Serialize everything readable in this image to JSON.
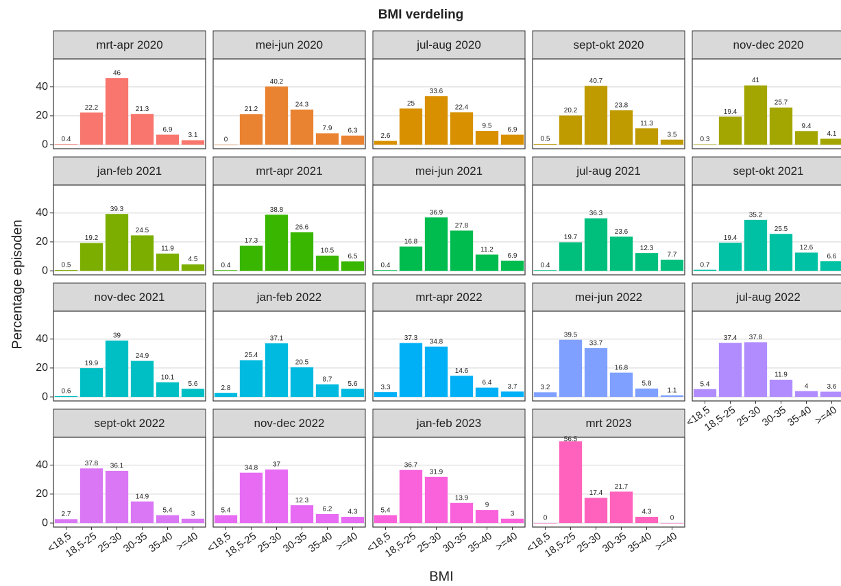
{
  "chart_data": {
    "type": "bar",
    "title": "BMI verdeling",
    "xlabel": "BMI",
    "ylabel": "Percentage episoden",
    "categories": [
      "<18,5",
      "18,5-25",
      "25-30",
      "30-35",
      "35-40",
      ">=40"
    ],
    "ylim": [
      -2.8,
      59.3
    ],
    "yticks": [
      0,
      20,
      40
    ],
    "grid": true,
    "ncol": 5,
    "facets": [
      {
        "title": "mrt-apr 2020",
        "color": "#F8766D",
        "values": [
          0.4,
          22.2,
          46,
          21.3,
          6.9,
          3.1
        ]
      },
      {
        "title": "mei-jun 2020",
        "color": "#EA8331",
        "values": [
          0,
          21.2,
          40.2,
          24.3,
          7.9,
          6.3
        ]
      },
      {
        "title": "jul-aug 2020",
        "color": "#D89000",
        "values": [
          2.6,
          25,
          33.6,
          22.4,
          9.5,
          6.9
        ]
      },
      {
        "title": "sept-okt 2020",
        "color": "#C09B00",
        "values": [
          0.5,
          20.2,
          40.7,
          23.8,
          11.3,
          3.5
        ]
      },
      {
        "title": "nov-dec 2020",
        "color": "#A3A500",
        "values": [
          0.3,
          19.4,
          41,
          25.7,
          9.4,
          4.1
        ]
      },
      {
        "title": "jan-feb 2021",
        "color": "#7CAE00",
        "values": [
          0.5,
          19.2,
          39.3,
          24.5,
          11.9,
          4.5
        ]
      },
      {
        "title": "mrt-apr 2021",
        "color": "#39B600",
        "values": [
          0.4,
          17.3,
          38.8,
          26.6,
          10.5,
          6.5
        ]
      },
      {
        "title": "mei-jun 2021",
        "color": "#00BB4E",
        "values": [
          0.4,
          16.8,
          36.9,
          27.8,
          11.2,
          6.9
        ]
      },
      {
        "title": "jul-aug 2021",
        "color": "#00BF7D",
        "values": [
          0.4,
          19.7,
          36.3,
          23.6,
          12.3,
          7.7
        ]
      },
      {
        "title": "sept-okt 2021",
        "color": "#00C1A3",
        "values": [
          0.7,
          19.4,
          35.2,
          25.5,
          12.6,
          6.6
        ]
      },
      {
        "title": "nov-dec 2021",
        "color": "#00BFC4",
        "values": [
          0.6,
          19.9,
          39,
          24.9,
          10.1,
          5.6
        ]
      },
      {
        "title": "jan-feb 2022",
        "color": "#00BAE0",
        "values": [
          2.8,
          25.4,
          37.1,
          20.5,
          8.7,
          5.6
        ]
      },
      {
        "title": "mrt-apr 2022",
        "color": "#00B0F6",
        "values": [
          3.3,
          37.3,
          34.8,
          14.6,
          6.4,
          3.7
        ]
      },
      {
        "title": "mei-jun 2022",
        "color": "#7FA0FF",
        "values": [
          3.2,
          39.5,
          33.7,
          16.8,
          5.8,
          1.1
        ]
      },
      {
        "title": "jul-aug 2022",
        "color": "#B08CFF",
        "values": [
          5.4,
          37.4,
          37.8,
          11.9,
          4,
          3.6
        ]
      },
      {
        "title": "sept-okt 2022",
        "color": "#D977F5",
        "values": [
          2.7,
          37.8,
          36.1,
          14.9,
          5.4,
          3
        ]
      },
      {
        "title": "nov-dec 2022",
        "color": "#E76BF3",
        "values": [
          5.4,
          34.8,
          37,
          12.3,
          6.2,
          4.3
        ]
      },
      {
        "title": "jan-feb 2023",
        "color": "#FA62DB",
        "values": [
          5.4,
          36.7,
          31.9,
          13.9,
          9,
          3
        ]
      },
      {
        "title": "mrt 2023",
        "color": "#FF62BC",
        "values": [
          0,
          56.5,
          17.4,
          21.7,
          4.3,
          0
        ]
      }
    ]
  }
}
